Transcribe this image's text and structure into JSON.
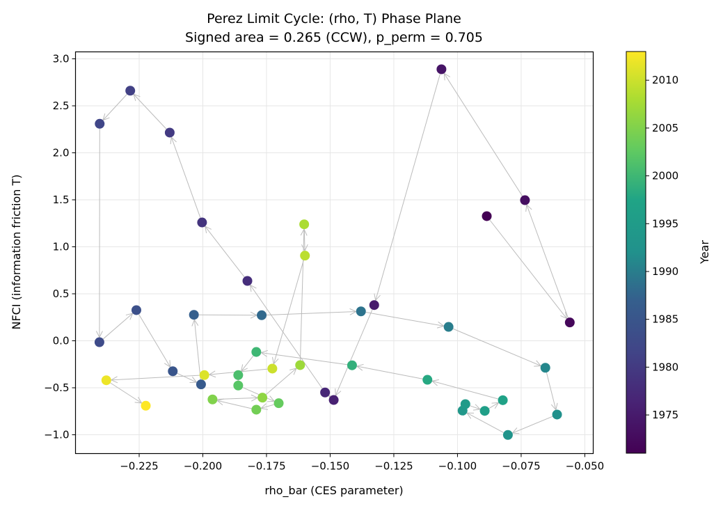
{
  "chart_data": {
    "type": "scatter",
    "title_line1": "Perez Limit Cycle: (rho, T) Phase Plane",
    "title_line2": "Signed area = 0.265 (CCW), p_perm = 0.705",
    "xlabel": "rho_bar (CES parameter)",
    "ylabel": "NFCI (information friction T)",
    "xlim": [
      -0.25,
      -0.0467
    ],
    "ylim": [
      -1.2,
      3.074
    ],
    "xticks": [
      -0.225,
      -0.2,
      -0.175,
      -0.15,
      -0.125,
      -0.1,
      -0.075,
      -0.05
    ],
    "xtick_labels": [
      "−0.225",
      "−0.200",
      "−0.175",
      "−0.150",
      "−0.125",
      "−0.100",
      "−0.075",
      "−0.050"
    ],
    "yticks": [
      -1.0,
      -0.5,
      0.0,
      0.5,
      1.0,
      1.5,
      2.0,
      2.5,
      3.0
    ],
    "ytick_labels": [
      "−1.0",
      "−0.5",
      "0.0",
      "0.5",
      "1.0",
      "1.5",
      "2.0",
      "2.5",
      "3.0"
    ],
    "grid": true,
    "connect_sequential_with_arrows": true,
    "arrow_color": "#bbbbbb",
    "colormap": "viridis",
    "colorbar": {
      "label": "Year",
      "range": [
        1971,
        2013
      ],
      "ticks": [
        1975,
        1980,
        1985,
        1990,
        1995,
        2000,
        2005,
        2010
      ],
      "tick_labels": [
        "1975",
        "1980",
        "1985",
        "1990",
        "1995",
        "2000",
        "2005",
        "2010"
      ]
    },
    "points": [
      {
        "year": 1971,
        "x": -0.0885,
        "y": 1.326
      },
      {
        "year": 1972,
        "x": -0.0559,
        "y": 0.195
      },
      {
        "year": 1973,
        "x": -0.0735,
        "y": 1.496
      },
      {
        "year": 1974,
        "x": -0.1063,
        "y": 2.889
      },
      {
        "year": 1975,
        "x": -0.1327,
        "y": 0.38
      },
      {
        "year": 1976,
        "x": -0.1486,
        "y": -0.63
      },
      {
        "year": 1977,
        "x": -0.152,
        "y": -0.55
      },
      {
        "year": 1978,
        "x": -0.1825,
        "y": 0.637
      },
      {
        "year": 1979,
        "x": -0.2003,
        "y": 1.259
      },
      {
        "year": 1980,
        "x": -0.213,
        "y": 2.215
      },
      {
        "year": 1981,
        "x": -0.2285,
        "y": 2.661
      },
      {
        "year": 1982,
        "x": -0.2405,
        "y": 2.309
      },
      {
        "year": 1983,
        "x": -0.2406,
        "y": -0.015
      },
      {
        "year": 1984,
        "x": -0.2261,
        "y": 0.326
      },
      {
        "year": 1985,
        "x": -0.2118,
        "y": -0.324
      },
      {
        "year": 1986,
        "x": -0.2007,
        "y": -0.464
      },
      {
        "year": 1987,
        "x": -0.2035,
        "y": 0.276
      },
      {
        "year": 1988,
        "x": -0.1769,
        "y": 0.272
      },
      {
        "year": 1989,
        "x": -0.1379,
        "y": 0.313
      },
      {
        "year": 1990,
        "x": -0.1035,
        "y": 0.148
      },
      {
        "year": 1991,
        "x": -0.0655,
        "y": -0.287
      },
      {
        "year": 1992,
        "x": -0.0609,
        "y": -0.785
      },
      {
        "year": 1993,
        "x": -0.0802,
        "y": -1.002
      },
      {
        "year": 1994,
        "x": -0.098,
        "y": -0.743
      },
      {
        "year": 1995,
        "x": -0.0969,
        "y": -0.674
      },
      {
        "year": 1996,
        "x": -0.0893,
        "y": -0.746
      },
      {
        "year": 1997,
        "x": -0.0822,
        "y": -0.632
      },
      {
        "year": 1998,
        "x": -0.1118,
        "y": -0.415
      },
      {
        "year": 1999,
        "x": -0.1414,
        "y": -0.261
      },
      {
        "year": 2000,
        "x": -0.179,
        "y": -0.119
      },
      {
        "year": 2001,
        "x": -0.1861,
        "y": -0.365
      },
      {
        "year": 2002,
        "x": -0.1861,
        "y": -0.476
      },
      {
        "year": 2003,
        "x": -0.1702,
        "y": -0.664
      },
      {
        "year": 2004,
        "x": -0.179,
        "y": -0.733
      },
      {
        "year": 2005,
        "x": -0.1962,
        "y": -0.624
      },
      {
        "year": 2006,
        "x": -0.1766,
        "y": -0.605
      },
      {
        "year": 2007,
        "x": -0.1618,
        "y": -0.259
      },
      {
        "year": 2008,
        "x": -0.1602,
        "y": 1.239
      },
      {
        "year": 2009,
        "x": -0.1599,
        "y": 0.906
      },
      {
        "year": 2010,
        "x": -0.1727,
        "y": -0.296
      },
      {
        "year": 2011,
        "x": -0.1994,
        "y": -0.365
      },
      {
        "year": 2012,
        "x": -0.2379,
        "y": -0.42
      },
      {
        "year": 2013,
        "x": -0.2224,
        "y": -0.691
      }
    ]
  }
}
